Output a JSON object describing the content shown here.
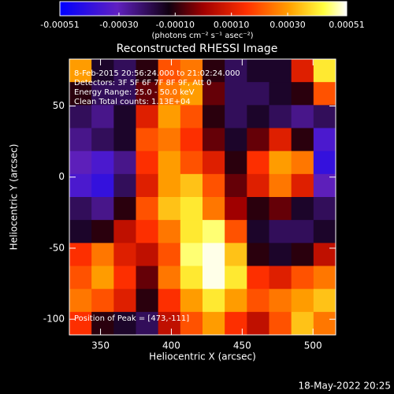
{
  "chart_data": {
    "type": "heatmap",
    "title": "Reconstructed RHESSI Image",
    "colorbar_label": "(photons cm⁻² s⁻¹ asec⁻²)",
    "x_label": "Heliocentric X (arcsec)",
    "y_label": "Heliocentric Y (arcsec)",
    "annotations": [
      "8-Feb-2015 20:56:24.000 to 21:02:24.000",
      "Detectors: 3F 5F 6F 7F 8F 9F, Att 0",
      "Energy Range: 25.0 - 50.0 keV",
      "Clean    Total counts: 1.13E+04"
    ],
    "peak_label": "Position of Peak = [473,-111]",
    "timestamp": "18-May-2022 20:25",
    "xlim": [
      328,
      516
    ],
    "ylim": [
      -111,
      83
    ],
    "xticks": [
      350,
      400,
      450,
      500
    ],
    "yticks": [
      -100,
      -50,
      0,
      50
    ],
    "zlim": [
      -0.00051,
      0.00051
    ],
    "zticks": [
      -0.00051,
      {
        "value": -0.0003,
        "label": "-0.00030"
      },
      {
        "value": -0.0001,
        "label": "-0.00010"
      },
      {
        "value": 0.0001,
        "label": "0.00010"
      },
      {
        "value": 0.0003,
        "label": "0.00030"
      },
      0.00051
    ],
    "colorscale": [
      [
        0,
        "#0000ff"
      ],
      [
        0.2,
        "#6020c0"
      ],
      [
        0.38,
        "#100010"
      ],
      [
        0.5,
        "#a00000"
      ],
      [
        0.65,
        "#ff3000"
      ],
      [
        0.8,
        "#ffa000"
      ],
      [
        0.92,
        "#ffff40"
      ],
      [
        1,
        "#ffffff"
      ]
    ],
    "z": [
      [
        0.0003,
        -0.00015,
        -0.0002,
        -0.0001,
        0.0002,
        0.00025,
        -0.0001,
        -0.0002,
        -0.00015,
        -0.00015,
        0.0001,
        0.0004
      ],
      [
        -0.0001,
        -0.0002,
        -0.0002,
        -5e-05,
        0.00025,
        0.0003,
        -5e-05,
        -0.0002,
        -0.0002,
        -0.00015,
        -0.0001,
        0.0002
      ],
      [
        -0.0002,
        -0.00025,
        -0.00015,
        0.0001,
        0.0003,
        0.0002,
        -0.0001,
        -0.0002,
        -0.00015,
        -0.0002,
        -0.00025,
        -0.0002
      ],
      [
        -0.00025,
        -0.0002,
        -0.00015,
        0.0002,
        0.00025,
        0.00015,
        -5e-05,
        -0.00015,
        -5e-05,
        0.0001,
        -0.0001,
        -0.00035
      ],
      [
        -0.0003,
        -0.00035,
        -0.00025,
        0.00015,
        0.0003,
        0.0002,
        0.0001,
        -0.0001,
        0.00015,
        0.0003,
        0.00025,
        -0.0004
      ],
      [
        -0.00035,
        -0.0004,
        -0.0002,
        0.0001,
        0.0003,
        0.00035,
        0.0002,
        -5e-05,
        0.0001,
        0.00025,
        0.0001,
        -0.0003
      ],
      [
        -0.0002,
        -0.00025,
        -0.0001,
        0.0002,
        0.00035,
        0.0004,
        0.00025,
        0,
        -0.0001,
        -5e-05,
        -0.00015,
        -0.0002
      ],
      [
        -0.00015,
        -0.0001,
        5e-05,
        0.00015,
        0.00025,
        0.0004,
        0.00045,
        0.0002,
        -0.00015,
        -0.0002,
        -0.0002,
        -0.00015
      ],
      [
        0.00015,
        0.00025,
        0.0001,
        5e-05,
        0.0002,
        0.00045,
        0.0005,
        0.00035,
        -0.0001,
        -0.00015,
        -0.0001,
        5e-05
      ],
      [
        0.0002,
        0.0003,
        0.00015,
        -5e-05,
        0.00025,
        0.0004,
        0.0005,
        0.0004,
        0.00015,
        0.0001,
        0.0002,
        0.00025
      ],
      [
        0.00025,
        0.0002,
        0.0001,
        -0.0001,
        0.00015,
        0.0003,
        0.0004,
        0.0003,
        0.0002,
        0.00025,
        0.0003,
        0.00035
      ],
      [
        0.00015,
        -0.0001,
        -0.00015,
        -0.0002,
        5e-05,
        0.0002,
        0.0003,
        0.00015,
        5e-05,
        0.0002,
        0.00035,
        0.00025
      ]
    ]
  }
}
